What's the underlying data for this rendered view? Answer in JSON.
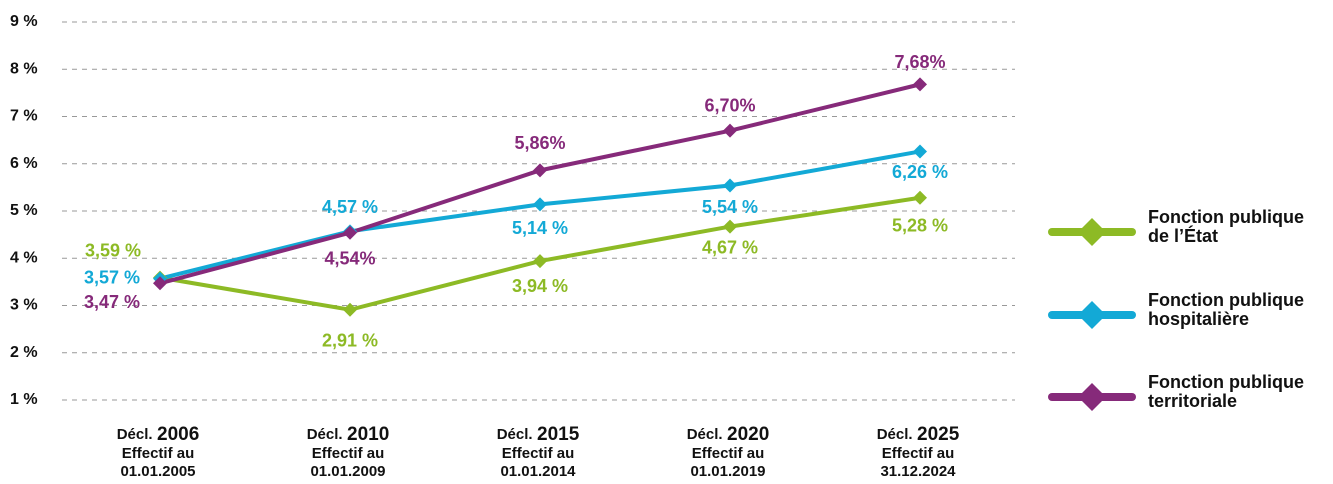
{
  "chart_data": {
    "type": "line",
    "categories": [
      {
        "prefix": "Décl.",
        "year": "2006",
        "line2": "Effectif au",
        "line3": "01.01.2005"
      },
      {
        "prefix": "Décl.",
        "year": "2010",
        "line2": "Effectif au",
        "line3": "01.01.2009"
      },
      {
        "prefix": "Décl.",
        "year": "2015",
        "line2": "Effectif au",
        "line3": "01.01.2014"
      },
      {
        "prefix": "Décl.",
        "year": "2020",
        "line2": "Effectif au",
        "line3": "01.01.2019"
      },
      {
        "prefix": "Décl.",
        "year": "2025",
        "line2": "Effectif au",
        "line3": "31.12.2024"
      }
    ],
    "series": [
      {
        "name": "Fonction publique de l’État",
        "color": "#8dba25",
        "values": [
          3.59,
          2.91,
          3.94,
          4.67,
          5.28
        ],
        "value_labels": [
          "3,59 %",
          "2,91 %",
          "3,94 %",
          "4,67 %",
          "5,28 %"
        ]
      },
      {
        "name": "Fonction publique hospitalière",
        "color": "#13a9d6",
        "values": [
          3.57,
          4.57,
          5.14,
          5.54,
          6.26
        ],
        "value_labels": [
          "3,57 %",
          "4,57 %",
          "5,14 %",
          "5,54 %",
          "6,26 %"
        ]
      },
      {
        "name": "Fonction publique territoriale",
        "color": "#862a7a",
        "values": [
          3.47,
          4.54,
          5.86,
          6.7,
          7.68
        ],
        "value_labels": [
          "3,47 %",
          "4,54%",
          "5,86%",
          "6,70%",
          "7,68%"
        ]
      }
    ],
    "ylim": [
      1,
      9
    ],
    "yticks": [
      {
        "value": 1,
        "label": "1 %"
      },
      {
        "value": 2,
        "label": "2 %"
      },
      {
        "value": 3,
        "label": "3 %"
      },
      {
        "value": 4,
        "label": "4 %"
      },
      {
        "value": 5,
        "label": "5 %"
      },
      {
        "value": 6,
        "label": "6 %"
      },
      {
        "value": 7,
        "label": "7 %"
      },
      {
        "value": 8,
        "label": "8 %"
      },
      {
        "value": 9,
        "label": "9 %"
      }
    ],
    "grid": true,
    "legend": "right"
  }
}
